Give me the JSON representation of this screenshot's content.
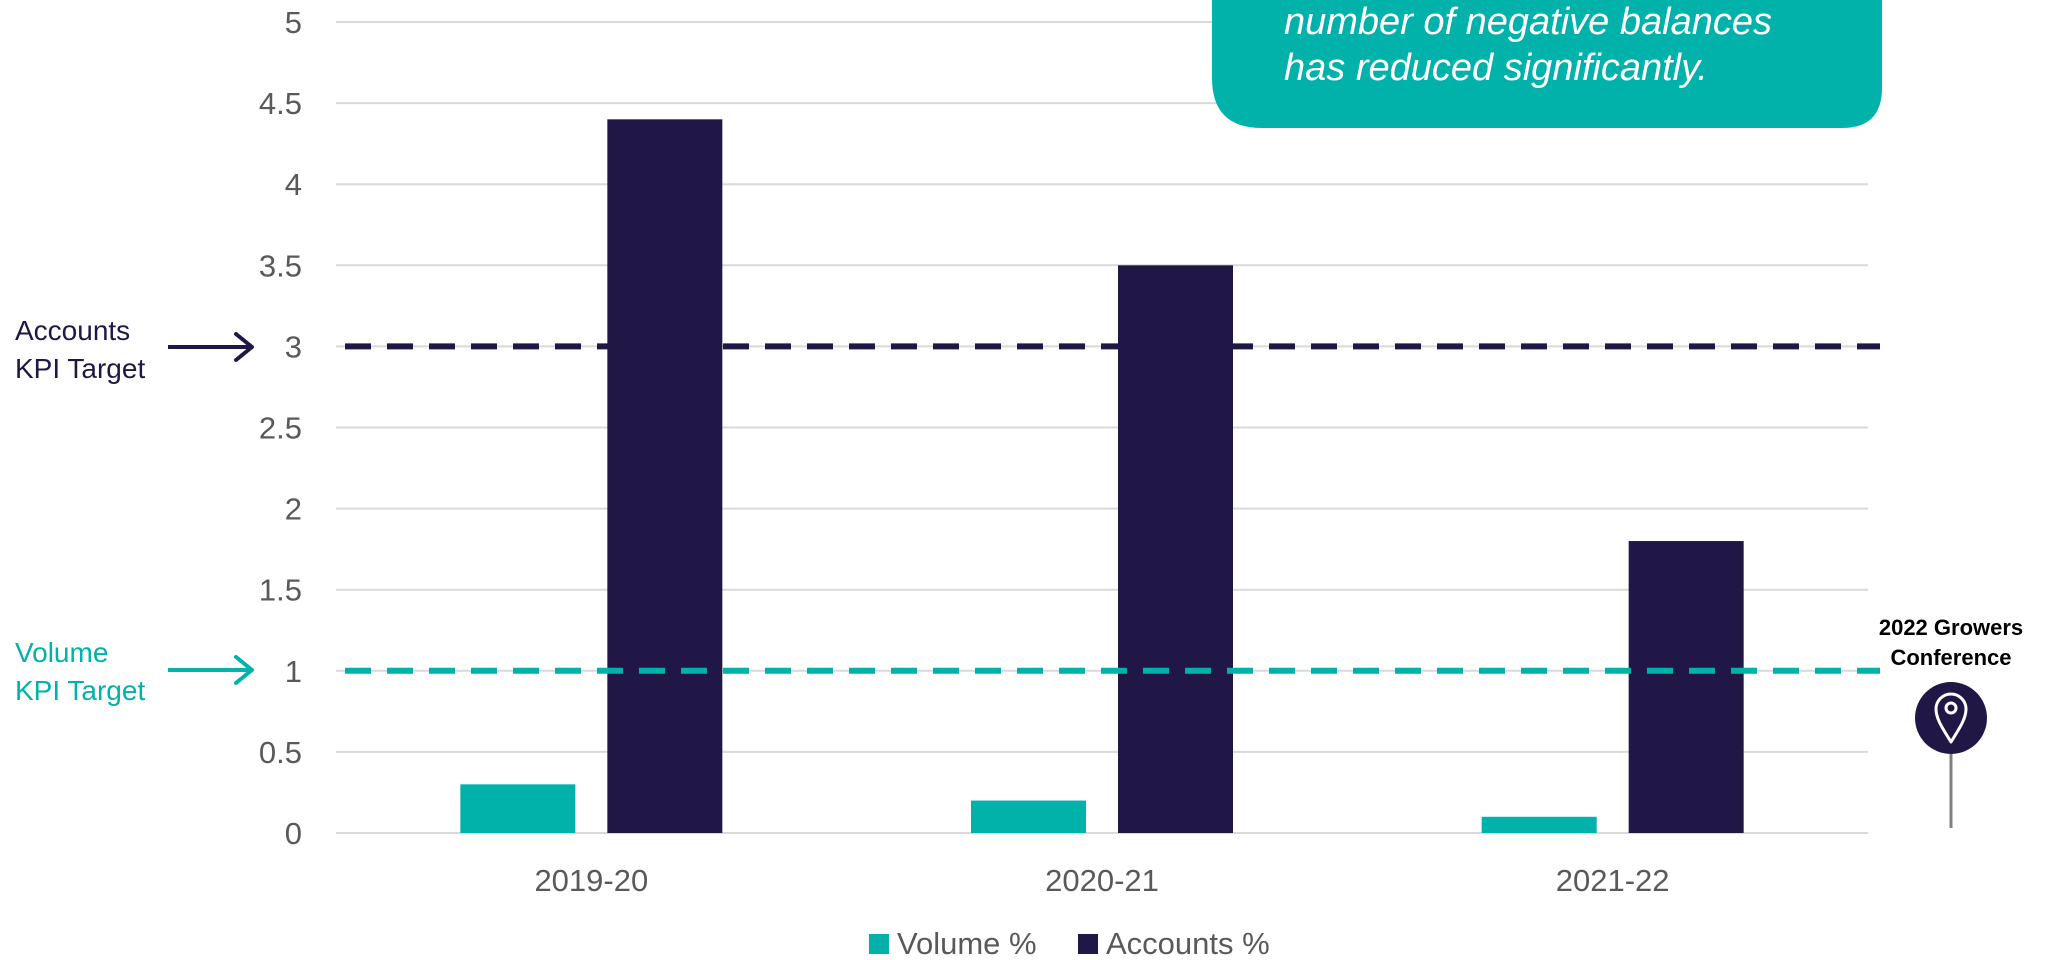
{
  "colors": {
    "volume": "#00B2A9",
    "accounts": "#211746",
    "grid": "#D9D9D9",
    "tick_text": "#595959"
  },
  "callout": {
    "line1": "number of negative balances",
    "line2": "has reduced significantly."
  },
  "targets": {
    "accounts": {
      "line1": "Accounts",
      "line2": "KPI Target",
      "value": 3
    },
    "volume": {
      "line1": "Volume",
      "line2": "KPI Target",
      "value": 1
    }
  },
  "marker": {
    "line1": "2022 Growers",
    "line2": "Conference",
    "icon": "location-pin-icon"
  },
  "chart_data": {
    "type": "bar",
    "categories": [
      "2019-20",
      "2020-21",
      "2021-22"
    ],
    "series": [
      {
        "name": "Volume %",
        "values": [
          0.3,
          0.2,
          0.1
        ]
      },
      {
        "name": "Accounts %",
        "values": [
          4.4,
          3.5,
          1.8
        ]
      }
    ],
    "ylim": [
      0,
      5
    ],
    "yticks": [
      "0",
      "0.5",
      "1",
      "1.5",
      "2",
      "2.5",
      "3",
      "3.5",
      "4",
      "4.5",
      "5"
    ],
    "grid": true,
    "legend": "bottom-center"
  }
}
